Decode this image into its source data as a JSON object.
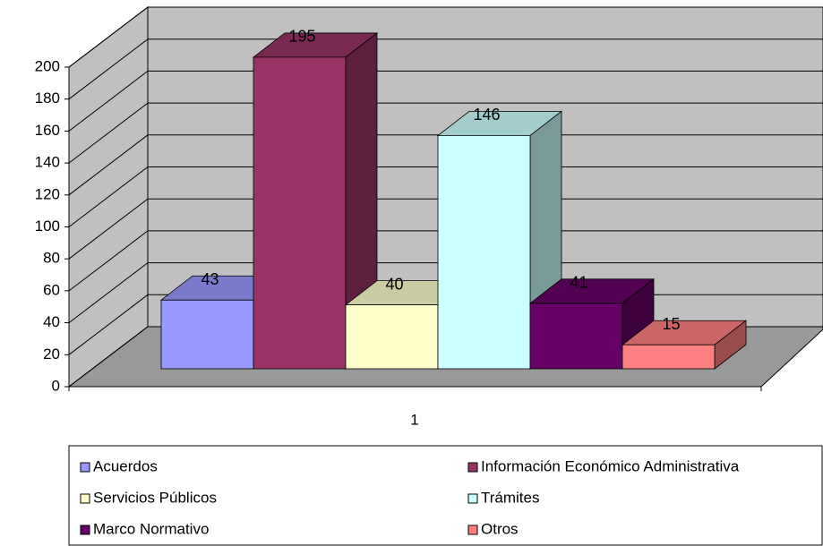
{
  "chart_data": {
    "type": "bar3d",
    "categories": [
      "1"
    ],
    "series": [
      {
        "name": "Acuerdos",
        "color": "#9999ff",
        "values": [
          43
        ]
      },
      {
        "name": "Información Económico Administrativa",
        "color": "#993366",
        "values": [
          195
        ]
      },
      {
        "name": "Servicios Públicos",
        "color": "#ffffcc",
        "values": [
          40
        ]
      },
      {
        "name": "Trámites",
        "color": "#ccffff",
        "values": [
          146
        ]
      },
      {
        "name": "Marco Normativo",
        "color": "#660066",
        "values": [
          41
        ]
      },
      {
        "name": "Otros",
        "color": "#ff8080",
        "values": [
          15
        ]
      }
    ],
    "ylim": [
      0,
      200
    ],
    "yticks": [
      0,
      20,
      40,
      60,
      80,
      100,
      120,
      140,
      160,
      180,
      200
    ],
    "grid": true,
    "legend": "bottom"
  }
}
